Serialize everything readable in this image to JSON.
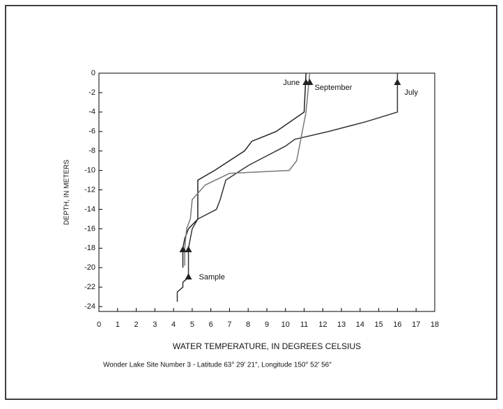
{
  "chart_data": {
    "type": "line",
    "x_label": "WATER TEMPERATURE, IN DEGREES CELSIUS",
    "y_label": "DEPTH, IN METERS",
    "caption": "Wonder Lake Site Number 3 - Latitude 63° 29′ 21″, Longitude 150° 52′ 56″",
    "xlim": [
      0,
      18
    ],
    "ylim": [
      -24.5,
      0
    ],
    "xticks": [
      0,
      1,
      2,
      3,
      4,
      5,
      6,
      7,
      8,
      9,
      10,
      11,
      12,
      13,
      14,
      15,
      16,
      17,
      18
    ],
    "yticks": [
      0,
      -2,
      -4,
      -6,
      -8,
      -10,
      -12,
      -14,
      -16,
      -18,
      -20,
      -22,
      -24
    ],
    "series": [
      {
        "name": "June",
        "color": "#222222",
        "x": [
          11.1,
          11.0,
          9.5,
          8.2,
          7.8,
          7.0,
          6.2,
          5.3,
          5.3,
          4.8,
          4.6,
          4.5,
          4.5
        ],
        "values": [
          0,
          -4,
          -6,
          -7,
          -8,
          -9,
          -10,
          -11,
          -15,
          -16,
          -17,
          -18,
          -20
        ]
      },
      {
        "name": "July",
        "color": "#333333",
        "x": [
          16.0,
          16.0,
          14.3,
          12.3,
          10.5,
          10.0,
          8.0,
          6.8,
          6.5,
          6.3,
          5.3,
          5.0,
          4.8,
          4.8,
          4.5,
          4.5,
          4.2,
          4.2
        ],
        "values": [
          0,
          -4,
          -5,
          -6,
          -6.8,
          -7.5,
          -9.5,
          -11,
          -13,
          -14,
          -15,
          -16,
          -18,
          -21,
          -21.5,
          -22,
          -22.5,
          -23.5
        ]
      },
      {
        "name": "September",
        "color": "#777777",
        "x": [
          11.3,
          11.1,
          10.9,
          10.6,
          10.2,
          7.0,
          5.7,
          5.0,
          4.9,
          4.7,
          4.6,
          4.6
        ],
        "values": [
          0,
          -4,
          -6,
          -9,
          -10,
          -10.3,
          -11.5,
          -13,
          -15,
          -16,
          -18,
          -19.8
        ]
      }
    ],
    "markers": {
      "x": [
        11.1,
        11.3,
        16.0,
        4.5,
        4.8,
        4.8
      ],
      "values": [
        -1,
        -1,
        -1,
        -18.2,
        -18.2,
        -21
      ]
    },
    "annotation": "Sample"
  }
}
